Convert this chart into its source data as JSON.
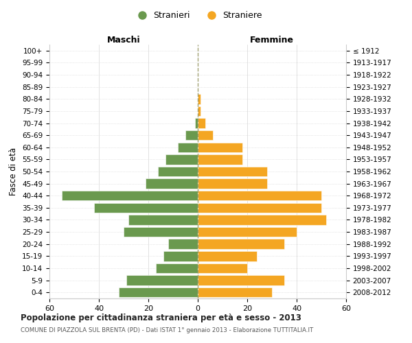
{
  "age_groups": [
    "100+",
    "95-99",
    "90-94",
    "85-89",
    "80-84",
    "75-79",
    "70-74",
    "65-69",
    "60-64",
    "55-59",
    "50-54",
    "45-49",
    "40-44",
    "35-39",
    "30-34",
    "25-29",
    "20-24",
    "15-19",
    "10-14",
    "5-9",
    "0-4"
  ],
  "birth_years": [
    "≤ 1912",
    "1913-1917",
    "1918-1922",
    "1923-1927",
    "1928-1932",
    "1933-1937",
    "1938-1942",
    "1943-1947",
    "1948-1952",
    "1953-1957",
    "1958-1962",
    "1963-1967",
    "1968-1972",
    "1973-1977",
    "1978-1982",
    "1983-1987",
    "1988-1992",
    "1993-1997",
    "1998-2002",
    "2003-2007",
    "2008-2012"
  ],
  "males": [
    0,
    0,
    0,
    0,
    0,
    0,
    1,
    5,
    8,
    13,
    16,
    21,
    55,
    42,
    28,
    30,
    12,
    14,
    17,
    29,
    32
  ],
  "females": [
    0,
    0,
    0,
    0,
    1,
    1,
    3,
    6,
    18,
    18,
    28,
    28,
    50,
    50,
    52,
    40,
    35,
    24,
    20,
    35,
    30
  ],
  "male_color": "#6a994e",
  "female_color": "#f4a622",
  "background_color": "#ffffff",
  "grid_color": "#cccccc",
  "center_line_color": "#999966",
  "xlabel_left": "Maschi",
  "xlabel_right": "Femmine",
  "ylabel_left": "Fasce di età",
  "legend_male": "Stranieri",
  "legend_female": "Straniere",
  "title": "Popolazione per cittadinanza straniera per età e sesso - 2013",
  "subtitle": "COMUNE DI PIAZZOLA SUL BRENTA (PD) - Dati ISTAT 1° gennaio 2013 - Elaborazione TUTTITALIA.IT",
  "xlim": 60
}
